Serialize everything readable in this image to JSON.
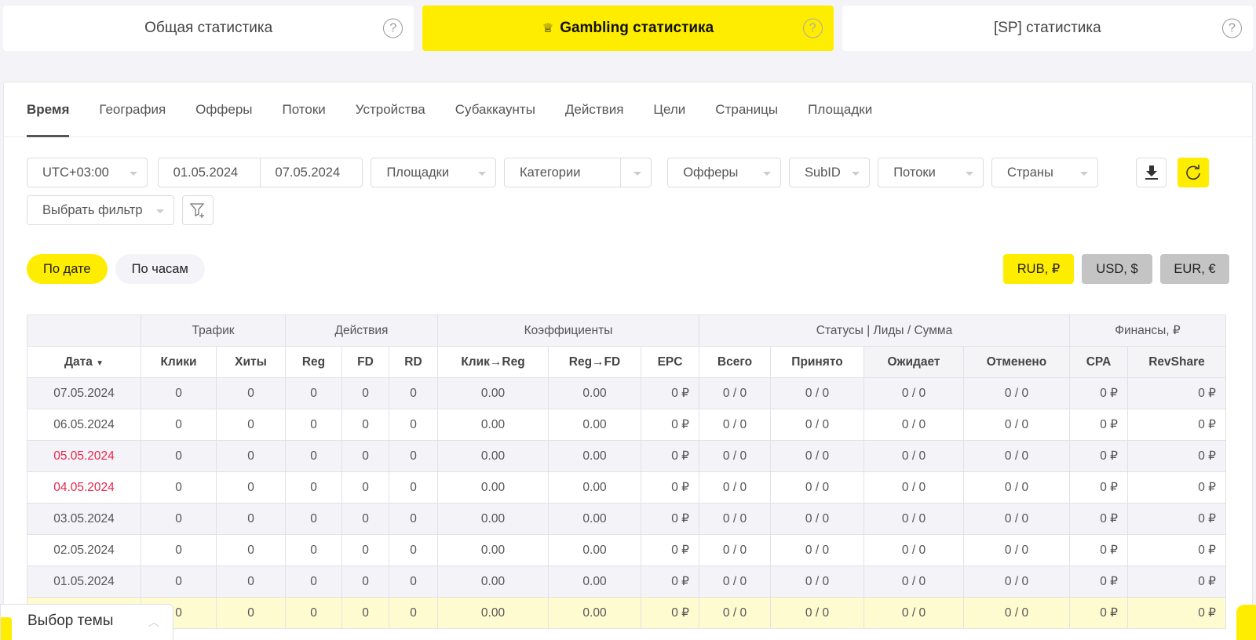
{
  "top_tabs": [
    {
      "label": "Общая статистика",
      "active": false
    },
    {
      "label": "Gambling статистика",
      "active": true,
      "icon": "crown-icon"
    },
    {
      "label": "[SP] статистика",
      "active": false
    }
  ],
  "help_glyph": "?",
  "crown_glyph": "♕",
  "sub_tabs": [
    "Время",
    "География",
    "Офферы",
    "Потоки",
    "Устройства",
    "Субаккаунты",
    "Действия",
    "Цели",
    "Страницы",
    "Площадки"
  ],
  "filters": {
    "timezone": "UTC+03:00",
    "date_from": "01.05.2024",
    "date_to": "07.05.2024",
    "platforms": "Площадки",
    "categories": "Категории",
    "offers": "Офферы",
    "subid": "SubID",
    "streams": "Потоки",
    "countries": "Страны",
    "choose_filter": "Выбрать фильтр"
  },
  "grouping": {
    "by_date": "По дате",
    "by_hours": "По часам"
  },
  "currency": {
    "rub": "RUB, ₽",
    "usd": "USD, $",
    "eur": "EUR, €"
  },
  "colors": {
    "accent": "#ffed00",
    "weekend": "#e8274a",
    "total_row": "#fffbd1"
  },
  "table": {
    "groups": [
      "Трафик",
      "Действия",
      "Коэффициенты",
      "Статусы | Лиды / Сумма",
      "Финансы, ₽"
    ],
    "columns": [
      "Дата",
      "Клики",
      "Хиты",
      "Reg",
      "FD",
      "RD",
      "Клик→Reg",
      "Reg→FD",
      "EPC",
      "Всего",
      "Принято",
      "Ожидает",
      "Отменено",
      "CPA",
      "RevShare"
    ],
    "rows": [
      [
        "07.05.2024",
        "0",
        "0",
        "0",
        "0",
        "0",
        "0.00",
        "0.00",
        "0 ₽",
        "0 / 0",
        "0 / 0",
        "0 / 0",
        "0 / 0",
        "0 ₽",
        "0 ₽"
      ],
      [
        "06.05.2024",
        "0",
        "0",
        "0",
        "0",
        "0",
        "0.00",
        "0.00",
        "0 ₽",
        "0 / 0",
        "0 / 0",
        "0 / 0",
        "0 / 0",
        "0 ₽",
        "0 ₽"
      ],
      [
        "05.05.2024",
        "0",
        "0",
        "0",
        "0",
        "0",
        "0.00",
        "0.00",
        "0 ₽",
        "0 / 0",
        "0 / 0",
        "0 / 0",
        "0 / 0",
        "0 ₽",
        "0 ₽"
      ],
      [
        "04.05.2024",
        "0",
        "0",
        "0",
        "0",
        "0",
        "0.00",
        "0.00",
        "0 ₽",
        "0 / 0",
        "0 / 0",
        "0 / 0",
        "0 / 0",
        "0 ₽",
        "0 ₽"
      ],
      [
        "03.05.2024",
        "0",
        "0",
        "0",
        "0",
        "0",
        "0.00",
        "0.00",
        "0 ₽",
        "0 / 0",
        "0 / 0",
        "0 / 0",
        "0 / 0",
        "0 ₽",
        "0 ₽"
      ],
      [
        "02.05.2024",
        "0",
        "0",
        "0",
        "0",
        "0",
        "0.00",
        "0.00",
        "0 ₽",
        "0 / 0",
        "0 / 0",
        "0 / 0",
        "0 / 0",
        "0 ₽",
        "0 ₽"
      ],
      [
        "01.05.2024",
        "0",
        "0",
        "0",
        "0",
        "0",
        "0.00",
        "0.00",
        "0 ₽",
        "0 / 0",
        "0 / 0",
        "0 / 0",
        "0 / 0",
        "0 ₽",
        "0 ₽"
      ]
    ],
    "total": [
      "",
      "0",
      "0",
      "0",
      "0",
      "0",
      "0.00",
      "0.00",
      "0 ₽",
      "0 / 0",
      "0 / 0",
      "0 / 0",
      "0 / 0",
      "0 ₽",
      "0 ₽"
    ]
  },
  "theme_picker": {
    "label": "Выбор темы",
    "chevron": "︿"
  }
}
